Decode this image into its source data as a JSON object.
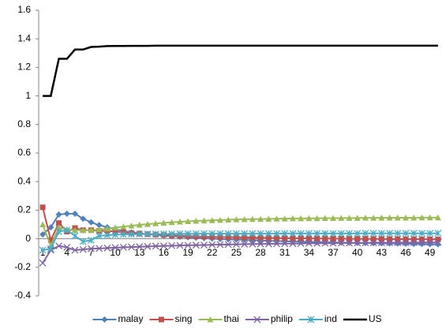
{
  "chart_data": {
    "type": "line",
    "categories": [
      "1",
      null,
      null,
      "4",
      null,
      null,
      "7",
      null,
      null,
      "10",
      null,
      null,
      "13",
      null,
      null,
      "16",
      null,
      null,
      "19",
      null,
      null,
      "22",
      null,
      null,
      "25",
      null,
      null,
      "28",
      null,
      null,
      "31",
      null,
      null,
      "34",
      null,
      null,
      "37",
      null,
      null,
      "40",
      null,
      null,
      "43",
      null,
      null,
      "46",
      null,
      null,
      "49",
      null
    ],
    "ylim": [
      -0.4,
      1.6
    ],
    "yticks": [
      -0.4,
      -0.2,
      0,
      0.2,
      0.4,
      0.6,
      0.8,
      1,
      1.2,
      1.4,
      1.6
    ],
    "grid": false,
    "legend": "bottom",
    "series": [
      {
        "name": "malay",
        "color": "#4f81bd",
        "marker": "diamond",
        "values": [
          0.03,
          0.08,
          0.17,
          0.175,
          0.175,
          0.14,
          0.115,
          0.095,
          0.08,
          0.065,
          0.055,
          0.045,
          0.038,
          0.032,
          0.027,
          0.022,
          0.018,
          0.014,
          0.01,
          0.007,
          0.004,
          0.001,
          -0.002,
          -0.004,
          -0.006,
          -0.008,
          -0.01,
          -0.012,
          -0.014,
          -0.016,
          -0.018,
          -0.019,
          -0.021,
          -0.022,
          -0.024,
          -0.025,
          -0.026,
          -0.027,
          -0.028,
          -0.029,
          -0.03,
          -0.031,
          -0.032,
          -0.033,
          -0.034,
          -0.035,
          -0.036,
          -0.037,
          -0.038,
          -0.039
        ]
      },
      {
        "name": "sing",
        "color": "#c0504d",
        "marker": "square",
        "values": [
          0.22,
          -0.01,
          0.11,
          0.05,
          0.075,
          0.06,
          0.06,
          0.055,
          0.055,
          0.05,
          0.045,
          0.04,
          0.036,
          0.032,
          0.029,
          0.026,
          0.023,
          0.021,
          0.019,
          0.017,
          0.015,
          0.013,
          0.012,
          0.011,
          0.01,
          0.009,
          0.008,
          0.007,
          0.006,
          0.005,
          0.004,
          0.004,
          0.003,
          0.003,
          0.002,
          0.002,
          0.001,
          0.001,
          0,
          0,
          0,
          -0.001,
          -0.001,
          -0.002,
          -0.002,
          -0.003,
          -0.003,
          -0.004,
          -0.004,
          -0.005
        ]
      },
      {
        "name": "thai",
        "color": "#9bbb59",
        "marker": "triangle",
        "values": [
          0.1,
          -0.05,
          0.08,
          0.065,
          0.06,
          0.06,
          0.06,
          0.065,
          0.07,
          0.078,
          0.085,
          0.091,
          0.097,
          0.102,
          0.107,
          0.111,
          0.115,
          0.119,
          0.122,
          0.125,
          0.127,
          0.129,
          0.131,
          0.133,
          0.135,
          0.136,
          0.137,
          0.138,
          0.139,
          0.14,
          0.141,
          0.142,
          0.142,
          0.143,
          0.143,
          0.144,
          0.144,
          0.145,
          0.145,
          0.145,
          0.146,
          0.146,
          0.146,
          0.147,
          0.147,
          0.147,
          0.147,
          0.148,
          0.148,
          0.148
        ]
      },
      {
        "name": "philip",
        "color": "#8064a2",
        "marker": "x",
        "values": [
          -0.17,
          -0.08,
          -0.05,
          -0.06,
          -0.08,
          -0.075,
          -0.07,
          -0.068,
          -0.065,
          -0.062,
          -0.06,
          -0.058,
          -0.056,
          -0.054,
          -0.052,
          -0.05,
          -0.049,
          -0.047,
          -0.046,
          -0.045,
          -0.044,
          -0.042,
          -0.041,
          -0.04,
          -0.039,
          -0.038,
          -0.037,
          -0.036,
          -0.036,
          -0.035,
          -0.034,
          -0.034,
          -0.033,
          -0.032,
          -0.032,
          -0.031,
          -0.031,
          -0.03,
          -0.03,
          -0.029,
          -0.029,
          -0.028,
          -0.028,
          -0.028,
          -0.027,
          -0.027,
          -0.027,
          -0.026,
          -0.026,
          -0.026
        ]
      },
      {
        "name": "ind",
        "color": "#4bacc6",
        "marker": "asterisk",
        "values": [
          -0.08,
          -0.07,
          0.05,
          0.06,
          0.02,
          -0.02,
          -0.01,
          0.02,
          0.025,
          0.028,
          0.03,
          0.031,
          0.032,
          0.033,
          0.033,
          0.034,
          0.034,
          0.035,
          0.035,
          0.035,
          0.036,
          0.036,
          0.036,
          0.036,
          0.036,
          0.036,
          0.036,
          0.036,
          0.036,
          0.036,
          0.037,
          0.037,
          0.037,
          0.037,
          0.037,
          0.037,
          0.037,
          0.037,
          0.037,
          0.037,
          0.038,
          0.038,
          0.038,
          0.038,
          0.038,
          0.038,
          0.038,
          0.038,
          0.038,
          0.038
        ]
      },
      {
        "name": "US",
        "color": "#000000",
        "marker": "none",
        "values": [
          1,
          1,
          1.26,
          1.26,
          1.325,
          1.325,
          1.343,
          1.345,
          1.349,
          1.35,
          1.35,
          1.351,
          1.351,
          1.351,
          1.352,
          1.352,
          1.352,
          1.352,
          1.352,
          1.352,
          1.352,
          1.352,
          1.352,
          1.352,
          1.352,
          1.352,
          1.352,
          1.352,
          1.352,
          1.352,
          1.352,
          1.352,
          1.352,
          1.352,
          1.352,
          1.352,
          1.352,
          1.352,
          1.352,
          1.352,
          1.352,
          1.352,
          1.352,
          1.352,
          1.352,
          1.352,
          1.352,
          1.352,
          1.352,
          1.352
        ]
      }
    ]
  }
}
